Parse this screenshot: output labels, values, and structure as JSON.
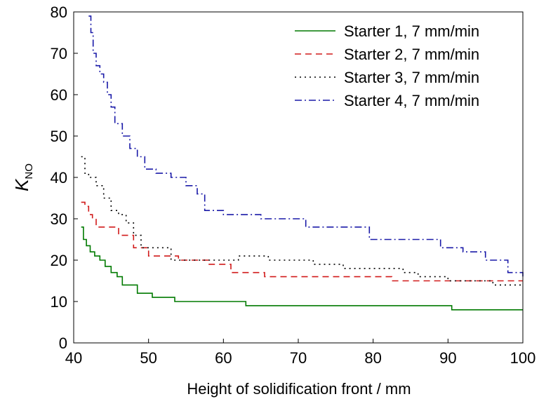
{
  "chart_data": {
    "type": "line",
    "xlabel": "Height of solidification front / mm",
    "ylabel": {
      "main": "K",
      "sub": "NO"
    },
    "xlim": [
      40,
      100
    ],
    "ylim": [
      0,
      80
    ],
    "xticks": [
      "40",
      "50",
      "60",
      "70",
      "80",
      "90",
      "100"
    ],
    "yticks": [
      "0",
      "10",
      "20",
      "30",
      "40",
      "50",
      "60",
      "70",
      "80"
    ],
    "grid": false,
    "legend_position": "top-right",
    "series": [
      {
        "name": "Starter 1, 7 mm/min",
        "color": "#007a00",
        "dash": "solid",
        "x": [
          41.0,
          41.3,
          41.7,
          42.2,
          42.8,
          43.5,
          44.2,
          45.0,
          45.8,
          46.5,
          48.5,
          50.5,
          53.5,
          63.0,
          90.5,
          100.0
        ],
        "y": [
          28,
          25,
          23.5,
          22,
          21,
          20,
          18.5,
          17,
          16,
          14,
          12,
          11,
          10,
          9,
          8,
          8
        ]
      },
      {
        "name": "Starter 2, 7 mm/min",
        "color": "#d11a1a",
        "dash": "dashed",
        "x": [
          41.0,
          41.5,
          42.0,
          42.5,
          43.0,
          44.5,
          46.0,
          48.0,
          50.0,
          52.0,
          54.0,
          56.0,
          58.0,
          61.0,
          65.5,
          82.5,
          100.0
        ],
        "y": [
          34,
          33,
          31,
          30,
          28,
          28,
          26,
          23,
          21,
          21,
          20,
          20,
          19,
          17,
          16,
          15,
          15
        ]
      },
      {
        "name": "Starter 3, 7 mm/min",
        "color": "#000000",
        "dash": "dotted",
        "x": [
          41.0,
          41.5,
          42.0,
          43.0,
          44.0,
          45.0,
          46.0,
          47.0,
          48.0,
          49.0,
          50.0,
          53.0,
          55.0,
          59.0,
          62.0,
          66.0,
          72.0,
          76.0,
          80.0,
          84.0,
          86.0,
          90.0,
          93.0,
          96.0,
          100.0
        ],
        "y": [
          45,
          41,
          40,
          38,
          35,
          32,
          31,
          29,
          26,
          23,
          23,
          20,
          20,
          20,
          21,
          20,
          19,
          18,
          18,
          17,
          16,
          15,
          15,
          14,
          14
        ]
      },
      {
        "name": "Starter 4, 7 mm/min",
        "color": "#1a1aa8",
        "dash": "dashdot",
        "x": [
          42.0,
          42.3,
          42.6,
          43.0,
          43.5,
          44.0,
          44.5,
          45.0,
          45.5,
          46.5,
          47.5,
          48.5,
          49.5,
          51.0,
          53.0,
          55.0,
          56.5,
          57.5,
          60.0,
          65.0,
          71.0,
          79.5,
          82.5,
          85.0,
          89.0,
          92.0,
          95.0,
          98.0,
          100.0
        ],
        "y": [
          79,
          75,
          70,
          67,
          65,
          63,
          60,
          57,
          53,
          50,
          47,
          45,
          42,
          41,
          40,
          38,
          36,
          32,
          31,
          30,
          28,
          25,
          25,
          25,
          23,
          22,
          20,
          17,
          16
        ]
      }
    ]
  }
}
